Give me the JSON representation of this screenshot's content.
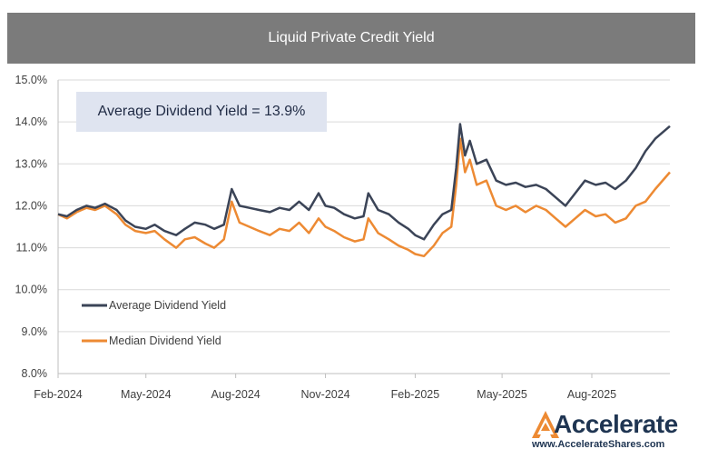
{
  "chart_data": {
    "type": "line",
    "title": "Liquid Private Credit Yield",
    "annotation": "Average Dividend Yield = 13.9%",
    "y_unit": "%",
    "ylim": [
      8.0,
      15.0
    ],
    "y_ticks": [
      "8.0%",
      "9.0%",
      "10.0%",
      "11.0%",
      "12.0%",
      "13.0%",
      "14.0%",
      "15.0%"
    ],
    "x_ticks": [
      "Feb-2024",
      "May-2024",
      "Aug-2024",
      "Nov-2024",
      "Feb-2025",
      "May-2025",
      "Aug-2025"
    ],
    "x_start": "2024-02-01",
    "x_end": "2025-10-20",
    "legend": {
      "placement": "bottom-left"
    },
    "series": [
      {
        "name": "Average Dividend Yield",
        "color": "#3b4457",
        "points": [
          [
            "2024-02-01",
            11.8
          ],
          [
            "2024-02-10",
            11.75
          ],
          [
            "2024-02-20",
            11.9
          ],
          [
            "2024-03-01",
            12.0
          ],
          [
            "2024-03-10",
            11.95
          ],
          [
            "2024-03-20",
            12.05
          ],
          [
            "2024-04-01",
            11.9
          ],
          [
            "2024-04-10",
            11.65
          ],
          [
            "2024-04-20",
            11.5
          ],
          [
            "2024-05-01",
            11.45
          ],
          [
            "2024-05-10",
            11.55
          ],
          [
            "2024-05-20",
            11.4
          ],
          [
            "2024-06-01",
            11.3
          ],
          [
            "2024-06-10",
            11.45
          ],
          [
            "2024-06-20",
            11.6
          ],
          [
            "2024-07-01",
            11.55
          ],
          [
            "2024-07-10",
            11.45
          ],
          [
            "2024-07-20",
            11.55
          ],
          [
            "2024-07-28",
            12.4
          ],
          [
            "2024-08-05",
            12.0
          ],
          [
            "2024-08-15",
            11.95
          ],
          [
            "2024-08-25",
            11.9
          ],
          [
            "2024-09-05",
            11.85
          ],
          [
            "2024-09-15",
            11.95
          ],
          [
            "2024-09-25",
            11.9
          ],
          [
            "2024-10-05",
            12.1
          ],
          [
            "2024-10-15",
            11.9
          ],
          [
            "2024-10-25",
            12.3
          ],
          [
            "2024-11-01",
            12.0
          ],
          [
            "2024-11-10",
            11.95
          ],
          [
            "2024-11-20",
            11.8
          ],
          [
            "2024-12-01",
            11.7
          ],
          [
            "2024-12-10",
            11.75
          ],
          [
            "2024-12-15",
            12.3
          ],
          [
            "2024-12-25",
            11.9
          ],
          [
            "2025-01-05",
            11.8
          ],
          [
            "2025-01-15",
            11.6
          ],
          [
            "2025-01-25",
            11.45
          ],
          [
            "2025-02-01",
            11.3
          ],
          [
            "2025-02-10",
            11.2
          ],
          [
            "2025-02-20",
            11.55
          ],
          [
            "2025-03-01",
            11.8
          ],
          [
            "2025-03-10",
            11.9
          ],
          [
            "2025-03-15",
            12.9
          ],
          [
            "2025-03-19",
            13.95
          ],
          [
            "2025-03-24",
            13.2
          ],
          [
            "2025-03-29",
            13.55
          ],
          [
            "2025-04-05",
            13.0
          ],
          [
            "2025-04-15",
            13.1
          ],
          [
            "2025-04-25",
            12.6
          ],
          [
            "2025-05-05",
            12.5
          ],
          [
            "2025-05-15",
            12.55
          ],
          [
            "2025-05-25",
            12.45
          ],
          [
            "2025-06-05",
            12.5
          ],
          [
            "2025-06-15",
            12.4
          ],
          [
            "2025-06-25",
            12.2
          ],
          [
            "2025-07-05",
            12.0
          ],
          [
            "2025-07-15",
            12.3
          ],
          [
            "2025-07-25",
            12.6
          ],
          [
            "2025-08-05",
            12.5
          ],
          [
            "2025-08-15",
            12.55
          ],
          [
            "2025-08-25",
            12.4
          ],
          [
            "2025-09-05",
            12.6
          ],
          [
            "2025-09-15",
            12.9
          ],
          [
            "2025-09-25",
            13.3
          ],
          [
            "2025-10-05",
            13.6
          ],
          [
            "2025-10-20",
            13.9
          ]
        ]
      },
      {
        "name": "Median Dividend Yield",
        "color": "#ed8a33",
        "points": [
          [
            "2024-02-01",
            11.8
          ],
          [
            "2024-02-10",
            11.7
          ],
          [
            "2024-02-20",
            11.85
          ],
          [
            "2024-03-01",
            11.95
          ],
          [
            "2024-03-10",
            11.9
          ],
          [
            "2024-03-20",
            12.0
          ],
          [
            "2024-04-01",
            11.8
          ],
          [
            "2024-04-10",
            11.55
          ],
          [
            "2024-04-20",
            11.4
          ],
          [
            "2024-05-01",
            11.35
          ],
          [
            "2024-05-10",
            11.4
          ],
          [
            "2024-05-20",
            11.2
          ],
          [
            "2024-06-01",
            11.0
          ],
          [
            "2024-06-10",
            11.2
          ],
          [
            "2024-06-20",
            11.25
          ],
          [
            "2024-07-01",
            11.1
          ],
          [
            "2024-07-10",
            11.0
          ],
          [
            "2024-07-20",
            11.2
          ],
          [
            "2024-07-28",
            12.1
          ],
          [
            "2024-08-05",
            11.6
          ],
          [
            "2024-08-15",
            11.5
          ],
          [
            "2024-08-25",
            11.4
          ],
          [
            "2024-09-05",
            11.3
          ],
          [
            "2024-09-15",
            11.45
          ],
          [
            "2024-09-25",
            11.4
          ],
          [
            "2024-10-05",
            11.6
          ],
          [
            "2024-10-15",
            11.35
          ],
          [
            "2024-10-25",
            11.7
          ],
          [
            "2024-11-01",
            11.5
          ],
          [
            "2024-11-10",
            11.4
          ],
          [
            "2024-11-20",
            11.25
          ],
          [
            "2024-12-01",
            11.15
          ],
          [
            "2024-12-10",
            11.2
          ],
          [
            "2024-12-15",
            11.7
          ],
          [
            "2024-12-25",
            11.35
          ],
          [
            "2025-01-05",
            11.2
          ],
          [
            "2025-01-15",
            11.05
          ],
          [
            "2025-01-25",
            10.95
          ],
          [
            "2025-02-01",
            10.85
          ],
          [
            "2025-02-10",
            10.8
          ],
          [
            "2025-02-20",
            11.05
          ],
          [
            "2025-03-01",
            11.35
          ],
          [
            "2025-03-10",
            11.5
          ],
          [
            "2025-03-15",
            12.5
          ],
          [
            "2025-03-19",
            13.6
          ],
          [
            "2025-03-24",
            12.8
          ],
          [
            "2025-03-29",
            13.1
          ],
          [
            "2025-04-05",
            12.5
          ],
          [
            "2025-04-15",
            12.6
          ],
          [
            "2025-04-25",
            12.0
          ],
          [
            "2025-05-05",
            11.9
          ],
          [
            "2025-05-15",
            12.0
          ],
          [
            "2025-05-25",
            11.85
          ],
          [
            "2025-06-05",
            12.0
          ],
          [
            "2025-06-15",
            11.9
          ],
          [
            "2025-06-25",
            11.7
          ],
          [
            "2025-07-05",
            11.5
          ],
          [
            "2025-07-15",
            11.7
          ],
          [
            "2025-07-25",
            11.9
          ],
          [
            "2025-08-05",
            11.75
          ],
          [
            "2025-08-15",
            11.8
          ],
          [
            "2025-08-25",
            11.6
          ],
          [
            "2025-09-05",
            11.7
          ],
          [
            "2025-09-15",
            12.0
          ],
          [
            "2025-09-25",
            12.1
          ],
          [
            "2025-10-05",
            12.4
          ],
          [
            "2025-10-20",
            12.8
          ]
        ]
      }
    ]
  },
  "branding": {
    "logo_text": "Accelerate",
    "url": "www.AccelerateShares.com",
    "logo_color": "#1f3552",
    "accent_color": "#ed8a33"
  }
}
